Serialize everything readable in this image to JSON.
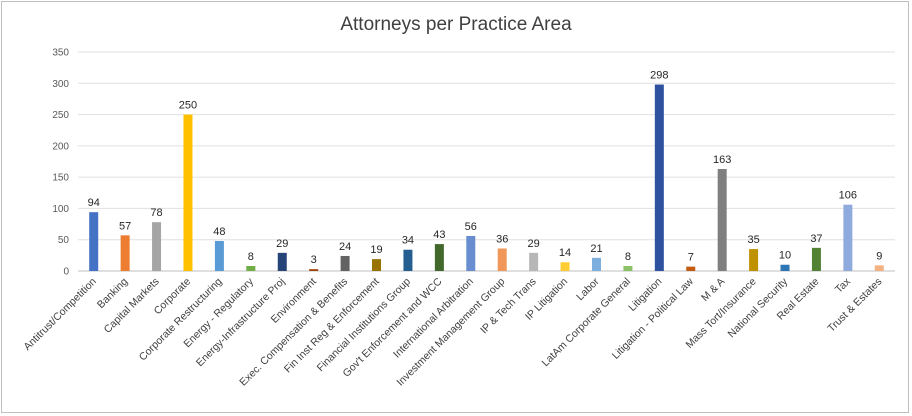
{
  "chart_data": {
    "type": "bar",
    "title": "Attorneys per Practice Area",
    "xlabel": "",
    "ylabel": "",
    "ylim": [
      0,
      350
    ],
    "yticks": [
      0,
      50,
      100,
      150,
      200,
      250,
      300,
      350
    ],
    "grid": true,
    "legend": "none",
    "categories": [
      "Antitrust/Competition",
      "Banking",
      "Capital Markets",
      "Corporate",
      "Corporate Restructuring",
      "Energy - Regulatory",
      "Energy-Infrastructure Proj",
      "Environment",
      "Exec. Compensation & Benefits",
      "Fin Inst Reg & Enforcement",
      "Financial Institutions Group",
      "Gov't Enforcement and WCC",
      "International Arbitration",
      "Investment Management Group",
      "IP & Tech Trans",
      "IP Litigation",
      "Labor",
      "LatAm Corporate General",
      "Litigation",
      "Litigation - Political Law",
      "M & A",
      "Mass Tort/Insurance",
      "National Security",
      "Real Estate",
      "Tax",
      "Trust & Estates"
    ],
    "values": [
      94,
      57,
      78,
      250,
      48,
      8,
      29,
      3,
      24,
      19,
      34,
      43,
      56,
      36,
      29,
      14,
      21,
      8,
      298,
      7,
      163,
      35,
      10,
      37,
      106,
      9
    ],
    "colors": [
      "#4472c4",
      "#ed7d31",
      "#a5a5a5",
      "#ffc000",
      "#5b9bd5",
      "#70ad47",
      "#264478",
      "#9e480e",
      "#636363",
      "#997300",
      "#255e91",
      "#43682b",
      "#698ed0",
      "#f1975a",
      "#b7b7b7",
      "#ffcd33",
      "#7cafdd",
      "#8cc168",
      "#2f52a0",
      "#c55a11",
      "#7f7f7f",
      "#bf9000",
      "#2e75b6",
      "#548235",
      "#8faadc",
      "#f4b183"
    ]
  }
}
